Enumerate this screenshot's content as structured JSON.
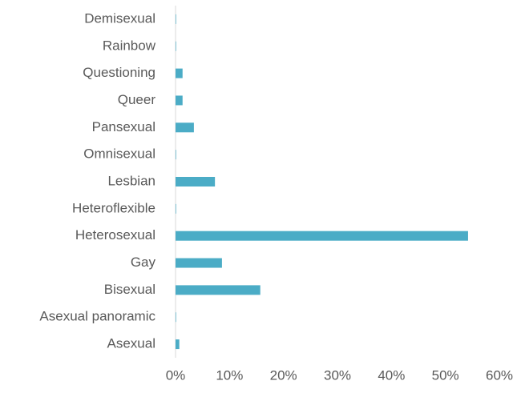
{
  "chart_data": {
    "type": "bar",
    "orientation": "horizontal",
    "categories": [
      "Demisexual",
      "Rainbow",
      "Questioning",
      "Queer",
      "Pansexual",
      "Omnisexual",
      "Lesbian",
      "Heteroflexible",
      "Heterosexual",
      "Gay",
      "Bisexual",
      "Asexual panoramic",
      "Asexual"
    ],
    "values": [
      0.1,
      0.1,
      1.3,
      1.3,
      3.4,
      0.1,
      7.3,
      0.1,
      54.2,
      8.6,
      15.7,
      0.1,
      0.7
    ],
    "color": "#4bacc6",
    "xlim": [
      0,
      60
    ],
    "xticks": [
      {
        "value": 0,
        "label": "0%"
      },
      {
        "value": 10,
        "label": "10%"
      },
      {
        "value": 20,
        "label": "20%"
      },
      {
        "value": 30,
        "label": "30%"
      },
      {
        "value": 40,
        "label": "40%"
      },
      {
        "value": 50,
        "label": "50%"
      },
      {
        "value": 60,
        "label": "60%"
      }
    ],
    "grid": false
  }
}
